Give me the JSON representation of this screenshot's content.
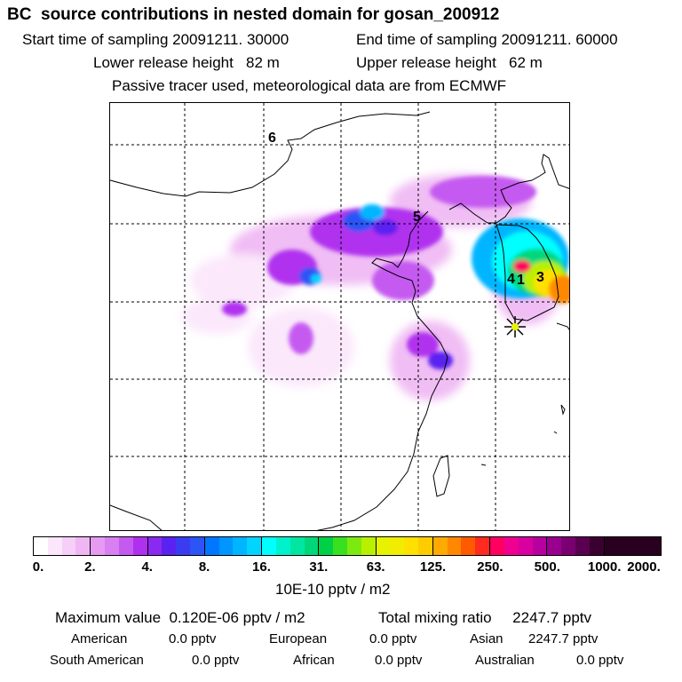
{
  "header": {
    "title": "BC  source contributions in nested domain for gosan_200912",
    "start_time": "Start time of sampling 20091211. 30000",
    "end_time": "End time of sampling 20091211. 60000",
    "lower_release": "Lower release height   82 m",
    "upper_release": "Upper release height   62 m",
    "tracer_note": "Passive tracer used, meteorological data are from ECMWF"
  },
  "map": {
    "region_labels": [
      "6",
      "5",
      "4",
      "1",
      "3"
    ],
    "receptor_marker": "star-marker-icon"
  },
  "colorbar": {
    "tick_labels": [
      "0.",
      "2.",
      "4.",
      "8.",
      "16.",
      "31.",
      "63.",
      "125.",
      "250.",
      "500.",
      "1000.",
      "2000."
    ],
    "colors": [
      [
        "#ffffff",
        "#fbe6fb",
        "#f5cff7",
        "#efb6f3"
      ],
      [
        "#e69af2",
        "#d87ff2",
        "#c55af0",
        "#b030ef"
      ],
      [
        "#8a2af0",
        "#5a22f0",
        "#3b3bf2",
        "#2b55f5"
      ],
      [
        "#0077ff",
        "#0095ff",
        "#00b5ff",
        "#00d4ff"
      ],
      [
        "#00ffff",
        "#00f2cc",
        "#00e6a0",
        "#00d77a"
      ],
      [
        "#00d046",
        "#38e020",
        "#7cea10",
        "#b8f000"
      ],
      [
        "#e6f200",
        "#f2ec00",
        "#ffe000",
        "#ffcc00"
      ],
      [
        "#ffaa00",
        "#ff8800",
        "#ff5a00",
        "#ff2a20"
      ],
      [
        "#ff0060",
        "#f00090",
        "#d800a0",
        "#b800a0"
      ],
      [
        "#9a0090",
        "#7a0070",
        "#5a0050",
        "#3a0030"
      ],
      [
        "#2a0020",
        "#2a0020",
        "#2a0020",
        "#2a0020"
      ]
    ],
    "units": "10E-10 pptv / m2"
  },
  "stats": {
    "max_value": "Maximum value  0.120E-06 pptv / m2",
    "total_mixing": "Total mixing ratio     2247.7 pptv",
    "american_label": "American",
    "american_value": "0.0 pptv",
    "european_label": "European",
    "european_value": "0.0 pptv",
    "asian_label": "Asian",
    "asian_value": "2247.7 pptv",
    "south_american_label": "South American",
    "south_american_value": "0.0 pptv",
    "african_label": "African",
    "african_value": "0.0 pptv",
    "australian_label": "Australian",
    "australian_value": "0.0 pptv"
  }
}
